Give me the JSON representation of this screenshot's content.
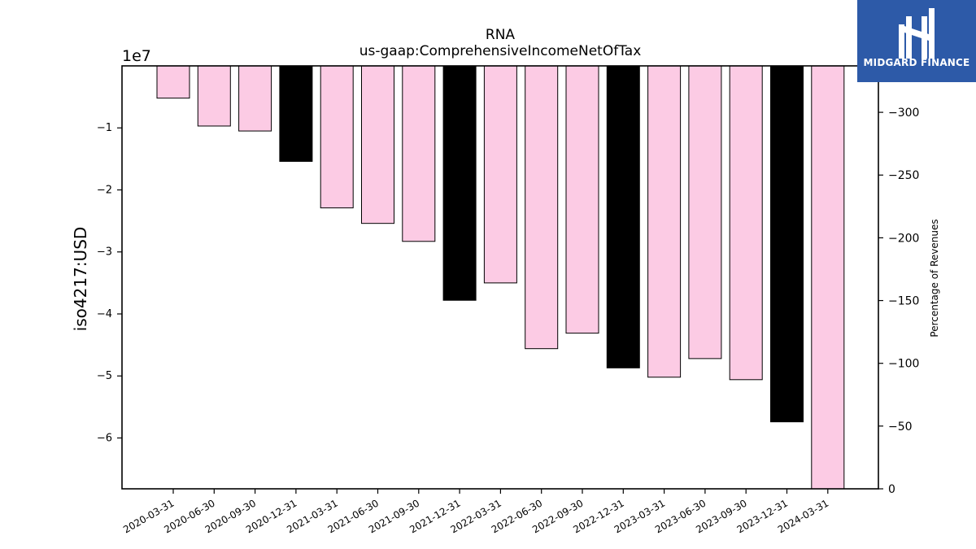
{
  "chart_data": {
    "type": "bar",
    "title": "RNA",
    "subtitle": "us-gaap:ComprehensiveIncomeNetOfTax",
    "ylabel": "iso4217:USD",
    "y_offset_label": "1e7",
    "y2label": "Percentage of Revenues",
    "categories": [
      "2020-03-31",
      "2020-06-30",
      "2020-09-30",
      "2020-12-31",
      "2021-03-31",
      "2021-06-30",
      "2021-09-30",
      "2021-12-31",
      "2022-03-31",
      "2022-06-30",
      "2022-09-30",
      "2022-12-31",
      "2023-03-31",
      "2023-06-30",
      "2023-09-30",
      "2023-12-31",
      "2024-03-31"
    ],
    "values": [
      -5200000,
      -9700000,
      -10500000,
      -15400000,
      -22900000,
      -25400000,
      -28300000,
      -37800000,
      -35000000,
      -45600000,
      -43100000,
      -48700000,
      -50200000,
      -47200000,
      -50600000,
      -57400000,
      -68200000
    ],
    "highlight_index": [
      3,
      7,
      11,
      15
    ],
    "colors": {
      "normal": "#fccbe4",
      "highlight": "#000000",
      "edge": "#000000"
    },
    "ylim": [
      -68200000,
      0
    ],
    "yticks": [
      -10000000,
      -20000000,
      -30000000,
      -40000000,
      -50000000,
      -60000000
    ],
    "ytick_labels": [
      "−1",
      "−2",
      "−3",
      "−4",
      "−5",
      "−6"
    ],
    "y2lim": [
      0,
      -337
    ],
    "y2ticks": [
      -300,
      -250,
      -200,
      -150,
      -100,
      -50,
      0
    ],
    "y2tick_labels": [
      "−300",
      "−250",
      "−200",
      "−150",
      "−100",
      "−50",
      "0"
    ]
  },
  "logo": {
    "text": "MIDGARD FINANCE"
  }
}
